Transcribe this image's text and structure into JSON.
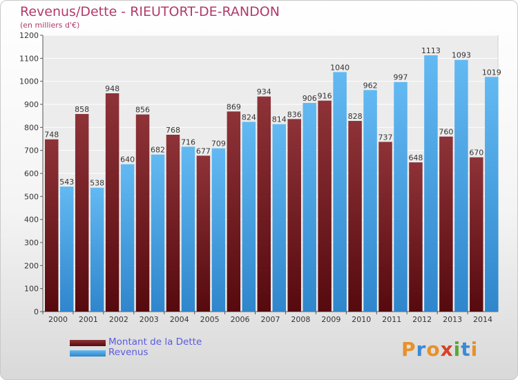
{
  "chart_data": {
    "type": "bar",
    "title": "Revenus/Dette - RIEUTORT-DE-RANDON",
    "subtitle": "(en milliers d'€)",
    "categories": [
      "2000",
      "2001",
      "2002",
      "2003",
      "2004",
      "2005",
      "2006",
      "2007",
      "2008",
      "2009",
      "2010",
      "2011",
      "2012",
      "2013",
      "2014"
    ],
    "series": [
      {
        "name": "Montant de la Dette",
        "color": "#7a1e22",
        "values": [
          748,
          858,
          948,
          856,
          768,
          677,
          869,
          934,
          836,
          916,
          828,
          737,
          648,
          760,
          670
        ]
      },
      {
        "name": "Revenus",
        "color": "#4aa8e8",
        "values": [
          543,
          538,
          640,
          682,
          716,
          709,
          824,
          814,
          906,
          1040,
          962,
          997,
          1113,
          1093,
          1019
        ]
      }
    ],
    "ylim": [
      0,
      1200
    ],
    "yticks": [
      0,
      100,
      200,
      300,
      400,
      500,
      600,
      700,
      800,
      900,
      1000,
      1100,
      1200
    ],
    "grid": true,
    "legend": "bottom-left"
  },
  "logo": {
    "text": "Proxiti",
    "letters": [
      "P",
      "r",
      "o",
      "x",
      "i",
      "t",
      "i"
    ],
    "colors": [
      "#e8902a",
      "#3a8ad8",
      "#e8902a",
      "#d8402a",
      "#58a838",
      "#3a8ad8",
      "#e8902a"
    ]
  }
}
